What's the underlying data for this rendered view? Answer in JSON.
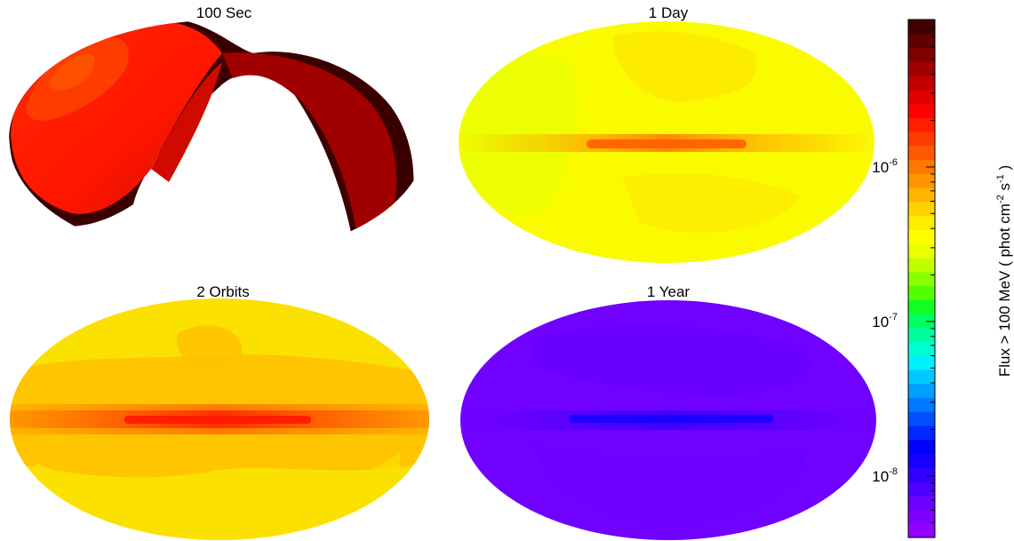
{
  "chart_data": {
    "type": "heatmap",
    "projection": "Aitoff (all-sky, elliptical)",
    "color_scale": "log",
    "panels": [
      {
        "title": "100 Sec",
        "coverage": "partial-arc",
        "base_color": "#ff1500",
        "plane_color": "#ff1500",
        "plane_strength": 0.0
      },
      {
        "title": "1 Day",
        "coverage": "full",
        "base_color": "#fbfb00",
        "plane_color": "#ff5b00",
        "plane_strength": 0.75
      },
      {
        "title": "2 Orbits",
        "coverage": "full",
        "base_color": "#fbd200",
        "plane_color": "#ff1d00",
        "plane_strength": 0.9
      },
      {
        "title": "1 Year",
        "coverage": "full",
        "base_color": "#7000ff",
        "plane_color": "#1500ff",
        "plane_strength": 0.6
      }
    ],
    "colorbar": {
      "label_main": "Flux > 100 MeV ( phot cm",
      "label_sup1": "-2",
      "label_mid": " s",
      "label_sup2": "-1",
      "label_end": " )",
      "ticks": [
        {
          "base": "10",
          "exp": "-6",
          "value": 1e-06
        },
        {
          "base": "10",
          "exp": "-7",
          "value": 1e-07
        },
        {
          "base": "10",
          "exp": "-8",
          "value": 1e-08
        }
      ],
      "range": [
        4e-09,
        9e-06
      ],
      "colors_bottom_to_top": [
        "#9400ff",
        "#8000ff",
        "#6a00ff",
        "#5000ff",
        "#3000ff",
        "#1500ff",
        "#0000ff",
        "#0028ff",
        "#0050ff",
        "#0078ff",
        "#00a0ff",
        "#00c8ff",
        "#00f0ff",
        "#00ffd0",
        "#00ff9a",
        "#00ff60",
        "#10ff20",
        "#50ff00",
        "#8aff00",
        "#c0ff00",
        "#eaff00",
        "#ffff00",
        "#ffec00",
        "#ffd200",
        "#ffb400",
        "#ff9600",
        "#ff7800",
        "#ff5a00",
        "#ff3c00",
        "#ff1e00",
        "#ff0000",
        "#e00000",
        "#c00000",
        "#a00000",
        "#800000",
        "#600000",
        "#400000"
      ]
    }
  }
}
